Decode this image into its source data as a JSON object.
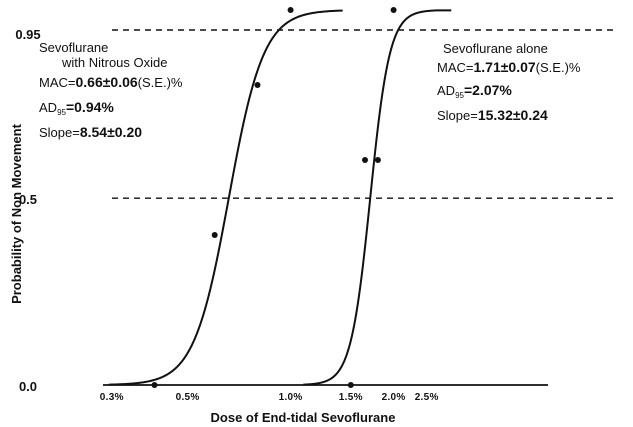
{
  "chart_data": {
    "type": "line",
    "title": "",
    "xlabel": "Dose of End-tidal Sevoflurane",
    "ylabel": "Probability of Non Movement",
    "xscale": "log",
    "xlim": [
      0.1,
      3.0
    ],
    "ylim": [
      0.0,
      1.0
    ],
    "x_ticks": [
      0.3,
      0.5,
      1.0,
      1.5,
      2.0,
      2.5
    ],
    "x_tick_labels": [
      "0.3%",
      "0.5%",
      "1.0%",
      "1.5%",
      "2.0%",
      "2.5%"
    ],
    "y_ticks": [
      0.0,
      0.5,
      0.95
    ],
    "y_tick_labels": [
      "0.0",
      "0.5",
      "0.95"
    ],
    "reference_lines": [
      0.5,
      0.95
    ],
    "grid": false,
    "series": [
      {
        "name": "Sevoflurane with Nitrous Oxide",
        "curve": {
          "mac": 0.66,
          "slope": 8.54
        },
        "points": [
          {
            "x": 0.4,
            "y": 0.0
          },
          {
            "x": 0.6,
            "y": 0.4
          },
          {
            "x": 0.8,
            "y": 0.8
          },
          {
            "x": 1.0,
            "y": 1.0
          }
        ]
      },
      {
        "name": "Sevoflurane alone",
        "curve": {
          "mac": 1.71,
          "slope": 15.32
        },
        "points": [
          {
            "x": 1.5,
            "y": 0.0
          },
          {
            "x": 1.65,
            "y": 0.6
          },
          {
            "x": 1.8,
            "y": 0.6
          },
          {
            "x": 2.0,
            "y": 1.0
          }
        ]
      }
    ],
    "annotations": {
      "left": {
        "line1": "Sevoflurane",
        "line2": "with Nitrous Oxide",
        "mac_label": "MAC=",
        "mac_value": "0.66±0.06",
        "mac_se": "(S.E.)%",
        "ad_label": "AD",
        "ad_sub": "95",
        "ad_value": "=0.94%",
        "slope_label": "Slope=",
        "slope_value": "8.54±0.20"
      },
      "right": {
        "line1": "Sevoflurane alone",
        "mac_label": "MAC=",
        "mac_value": "1.71±0.07",
        "mac_se": "(S.E.)%",
        "ad_label": "AD",
        "ad_sub": "95",
        "ad_value": "=2.07%",
        "slope_label": "Slope=",
        "slope_value": "15.32±0.24"
      }
    }
  }
}
